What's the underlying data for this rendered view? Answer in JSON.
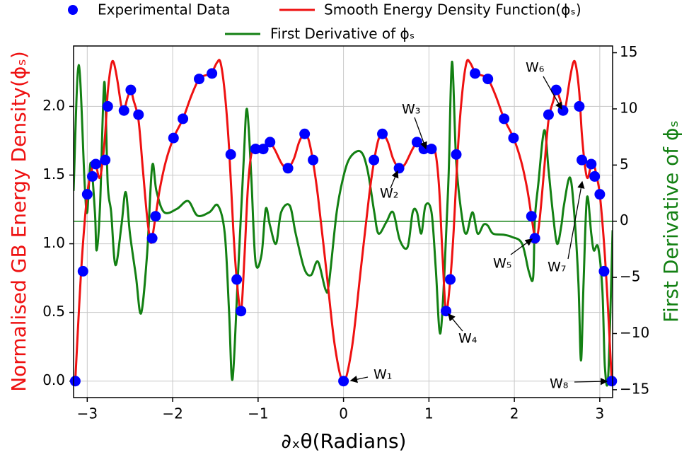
{
  "chart_data": {
    "type": "line",
    "x_label": "∂ₓθ(Radians)",
    "y_label": "Normalised GB Energy Density(ϕₛ)",
    "y2_label": "First Derivative of ϕₛ",
    "xlim": [
      -3.16,
      3.15
    ],
    "ylim": [
      -0.12,
      2.44
    ],
    "y2lim": [
      -15.7,
      15.6
    ],
    "xticks": [
      {
        "value": -3,
        "label": "−3"
      },
      {
        "value": -2,
        "label": "−2"
      },
      {
        "value": -1,
        "label": "−1"
      },
      0,
      1,
      2,
      3
    ],
    "yticks": [
      {
        "value": 0,
        "label": "0.0"
      },
      {
        "value": 0.5,
        "label": "0.5"
      },
      {
        "value": 1,
        "label": "1.0"
      },
      {
        "value": 1.5,
        "label": "1.5"
      },
      {
        "value": 2,
        "label": "2.0"
      }
    ],
    "y2ticks": [
      {
        "value": -15,
        "label": "−15"
      },
      {
        "value": -10,
        "label": "−10"
      },
      {
        "value": -5,
        "label": "−5"
      },
      0,
      5,
      10,
      15
    ],
    "grid": true,
    "y2_reference_line": 0,
    "annotations": [
      "W₁",
      "W₂",
      "W₃",
      "W₄",
      "W₅",
      "W₆",
      "W₇",
      "W₈"
    ],
    "series": [
      {
        "name": "Experimental Data",
        "type": "scatter",
        "color": "#0000ff",
        "x": [
          -3.14,
          -3.05,
          -3.0,
          -2.94,
          -2.9,
          -2.79,
          -2.76,
          -2.57,
          -2.49,
          -2.4,
          -2.24,
          -2.2,
          -1.99,
          -1.88,
          -1.69,
          -1.54,
          -1.32,
          -1.25,
          -1.2,
          -1.03,
          -0.94,
          -0.86,
          -0.65,
          -0.455,
          -0.356,
          0,
          0.356,
          0.455,
          0.65,
          0.86,
          0.94,
          1.03,
          1.2,
          1.25,
          1.32,
          1.54,
          1.69,
          1.88,
          1.99,
          2.2,
          2.24,
          2.4,
          2.49,
          2.57,
          2.76,
          2.79,
          2.9,
          2.94,
          3.0,
          3.05,
          3.14
        ],
        "values": [
          0,
          0.8,
          1.36,
          1.49,
          1.58,
          1.61,
          2.0,
          1.97,
          2.12,
          1.94,
          1.04,
          1.2,
          1.77,
          1.91,
          2.2,
          2.24,
          1.65,
          0.74,
          0.51,
          1.69,
          1.69,
          1.74,
          1.55,
          1.8,
          1.61,
          0,
          1.61,
          1.8,
          1.55,
          1.74,
          1.69,
          1.69,
          0.51,
          0.74,
          1.65,
          2.24,
          2.2,
          1.91,
          1.77,
          1.2,
          1.04,
          1.94,
          2.12,
          1.97,
          2.0,
          1.61,
          1.58,
          1.49,
          1.36,
          0.8,
          0
        ]
      },
      {
        "name": "Smooth Energy Density Function(ϕₛ)",
        "type": "line",
        "color": "#ee1111",
        "x": [
          -3.14,
          -3.09,
          -3.05,
          -3.0,
          -2.96,
          -2.93,
          -2.9,
          -2.86,
          -2.83,
          -2.79,
          -2.76,
          -2.72,
          -2.69,
          -2.65,
          -2.6,
          -2.57,
          -2.53,
          -2.49,
          -2.46,
          -2.4,
          -2.35,
          -2.3,
          -2.26,
          -2.24,
          -2.2,
          -2.15,
          -2.08,
          -1.99,
          -1.88,
          -1.78,
          -1.69,
          -1.6,
          -1.54,
          -1.48,
          -1.44,
          -1.39,
          -1.34,
          -1.29,
          -1.25,
          -1.2,
          -1.16,
          -1.12,
          -1.08,
          -1.03,
          -0.98,
          -0.94,
          -0.9,
          -0.86,
          -0.8,
          -0.72,
          -0.65,
          -0.58,
          -0.52,
          -0.46,
          -0.41,
          -0.36,
          -0.3,
          -0.2,
          -0.1,
          0,
          0.1,
          0.2,
          0.3,
          0.36,
          0.41,
          0.46,
          0.52,
          0.58,
          0.65,
          0.72,
          0.8,
          0.86,
          0.9,
          0.94,
          0.98,
          1.03,
          1.08,
          1.12,
          1.16,
          1.2,
          1.25,
          1.29,
          1.34,
          1.39,
          1.44,
          1.48,
          1.54,
          1.6,
          1.69,
          1.78,
          1.88,
          1.99,
          2.08,
          2.15,
          2.2,
          2.24,
          2.26,
          2.3,
          2.35,
          2.4,
          2.46,
          2.49,
          2.53,
          2.57,
          2.6,
          2.65,
          2.69,
          2.72,
          2.76,
          2.79,
          2.83,
          2.86,
          2.9,
          2.93,
          2.96,
          3.0,
          3.05,
          3.09,
          3.14
        ],
        "values": [
          0,
          0.6,
          1.0,
          1.36,
          1.5,
          1.58,
          1.58,
          1.48,
          1.55,
          1.8,
          2.1,
          2.3,
          2.32,
          2.2,
          2.0,
          1.97,
          2.06,
          2.12,
          2.05,
          1.9,
          1.55,
          1.2,
          1.02,
          1.04,
          1.2,
          1.4,
          1.6,
          1.77,
          1.91,
          2.08,
          2.2,
          2.23,
          2.25,
          2.32,
          2.32,
          2.1,
          1.7,
          1.1,
          0.74,
          0.51,
          0.9,
          1.4,
          1.65,
          1.72,
          1.69,
          1.69,
          1.73,
          1.74,
          1.68,
          1.58,
          1.55,
          1.62,
          1.74,
          1.8,
          1.76,
          1.61,
          1.35,
          0.8,
          0.25,
          0,
          0.25,
          0.8,
          1.35,
          1.61,
          1.76,
          1.8,
          1.74,
          1.62,
          1.55,
          1.58,
          1.68,
          1.74,
          1.73,
          1.69,
          1.69,
          1.72,
          1.65,
          1.4,
          0.9,
          0.51,
          0.74,
          1.1,
          1.7,
          2.1,
          2.32,
          2.32,
          2.25,
          2.23,
          2.2,
          2.08,
          1.91,
          1.77,
          1.6,
          1.4,
          1.2,
          1.04,
          1.02,
          1.2,
          1.55,
          1.9,
          2.05,
          2.12,
          2.06,
          1.97,
          2.0,
          2.2,
          2.32,
          2.3,
          2.1,
          1.8,
          1.55,
          1.48,
          1.58,
          1.58,
          1.5,
          1.36,
          1.0,
          0.6,
          0
        ]
      },
      {
        "name": "First Derivative of ϕₛ",
        "type": "line",
        "axis": "y2",
        "color": "#138013",
        "x": [
          -3.16,
          -3.1,
          -3.03,
          -3.0,
          -2.96,
          -2.91,
          -2.89,
          -2.85,
          -2.8,
          -2.76,
          -2.72,
          -2.67,
          -2.6,
          -2.55,
          -2.5,
          -2.43,
          -2.37,
          -2.3,
          -2.24,
          -2.19,
          -2.1,
          -1.95,
          -1.82,
          -1.71,
          -1.57,
          -1.47,
          -1.39,
          -1.34,
          -1.3,
          -1.24,
          -1.17,
          -1.13,
          -1.08,
          -1.03,
          -0.96,
          -0.91,
          -0.86,
          -0.79,
          -0.73,
          -0.63,
          -0.56,
          -0.46,
          -0.38,
          -0.3,
          -0.21,
          -0.17,
          -0.08,
          0,
          0.08,
          0.2,
          0.28,
          0.36,
          0.41,
          0.5,
          0.58,
          0.66,
          0.75,
          0.81,
          0.86,
          0.91,
          0.96,
          1.03,
          1.08,
          1.13,
          1.18,
          1.23,
          1.27,
          1.32,
          1.39,
          1.44,
          1.51,
          1.57,
          1.64,
          1.69,
          1.75,
          1.87,
          1.97,
          2.09,
          2.17,
          2.22,
          2.24,
          2.28,
          2.35,
          2.4,
          2.45,
          2.5,
          2.55,
          2.58,
          2.65,
          2.7,
          2.75,
          2.78,
          2.81,
          2.85,
          2.9,
          2.93,
          2.98,
          3.03,
          3.06,
          3.1,
          3.15
        ],
        "values": [
          2.7,
          13.9,
          3.3,
          0.8,
          5.2,
          0.8,
          -2.6,
          1.4,
          12.4,
          3.3,
          0.8,
          -3.9,
          -0.4,
          2.6,
          -1.1,
          -4.9,
          -8.2,
          -3.0,
          4.9,
          2.7,
          0.8,
          1.1,
          1.8,
          0.5,
          0.8,
          1.4,
          -1.1,
          -8.0,
          -14.1,
          -5.5,
          5.2,
          10.0,
          4.0,
          -3.6,
          -3.0,
          1.1,
          -0.4,
          -2.0,
          0.8,
          1.4,
          -1.1,
          -4.2,
          -4.8,
          -3.6,
          -6.1,
          -5.5,
          0.8,
          4.0,
          5.7,
          6.2,
          4.6,
          0.8,
          -1.1,
          -0.1,
          0.8,
          -1.7,
          -2.3,
          0.8,
          0.8,
          -1.1,
          1.4,
          0.8,
          -4.2,
          -10.0,
          -4.8,
          4.0,
          14.2,
          5.2,
          0.2,
          -1.1,
          0.8,
          -1.1,
          -0.3,
          -0.4,
          -1.1,
          -1.2,
          -1.4,
          -2.0,
          -4.5,
          -5.0,
          0.2,
          3.3,
          8.1,
          4.6,
          0.8,
          -2.0,
          -0.4,
          1.4,
          3.9,
          0.8,
          -5.5,
          -12.4,
          -5.5,
          2.1,
          -1.1,
          -2.6,
          -2.3,
          -6.1,
          -13.0,
          -13.6,
          -0.8
        ]
      }
    ]
  }
}
